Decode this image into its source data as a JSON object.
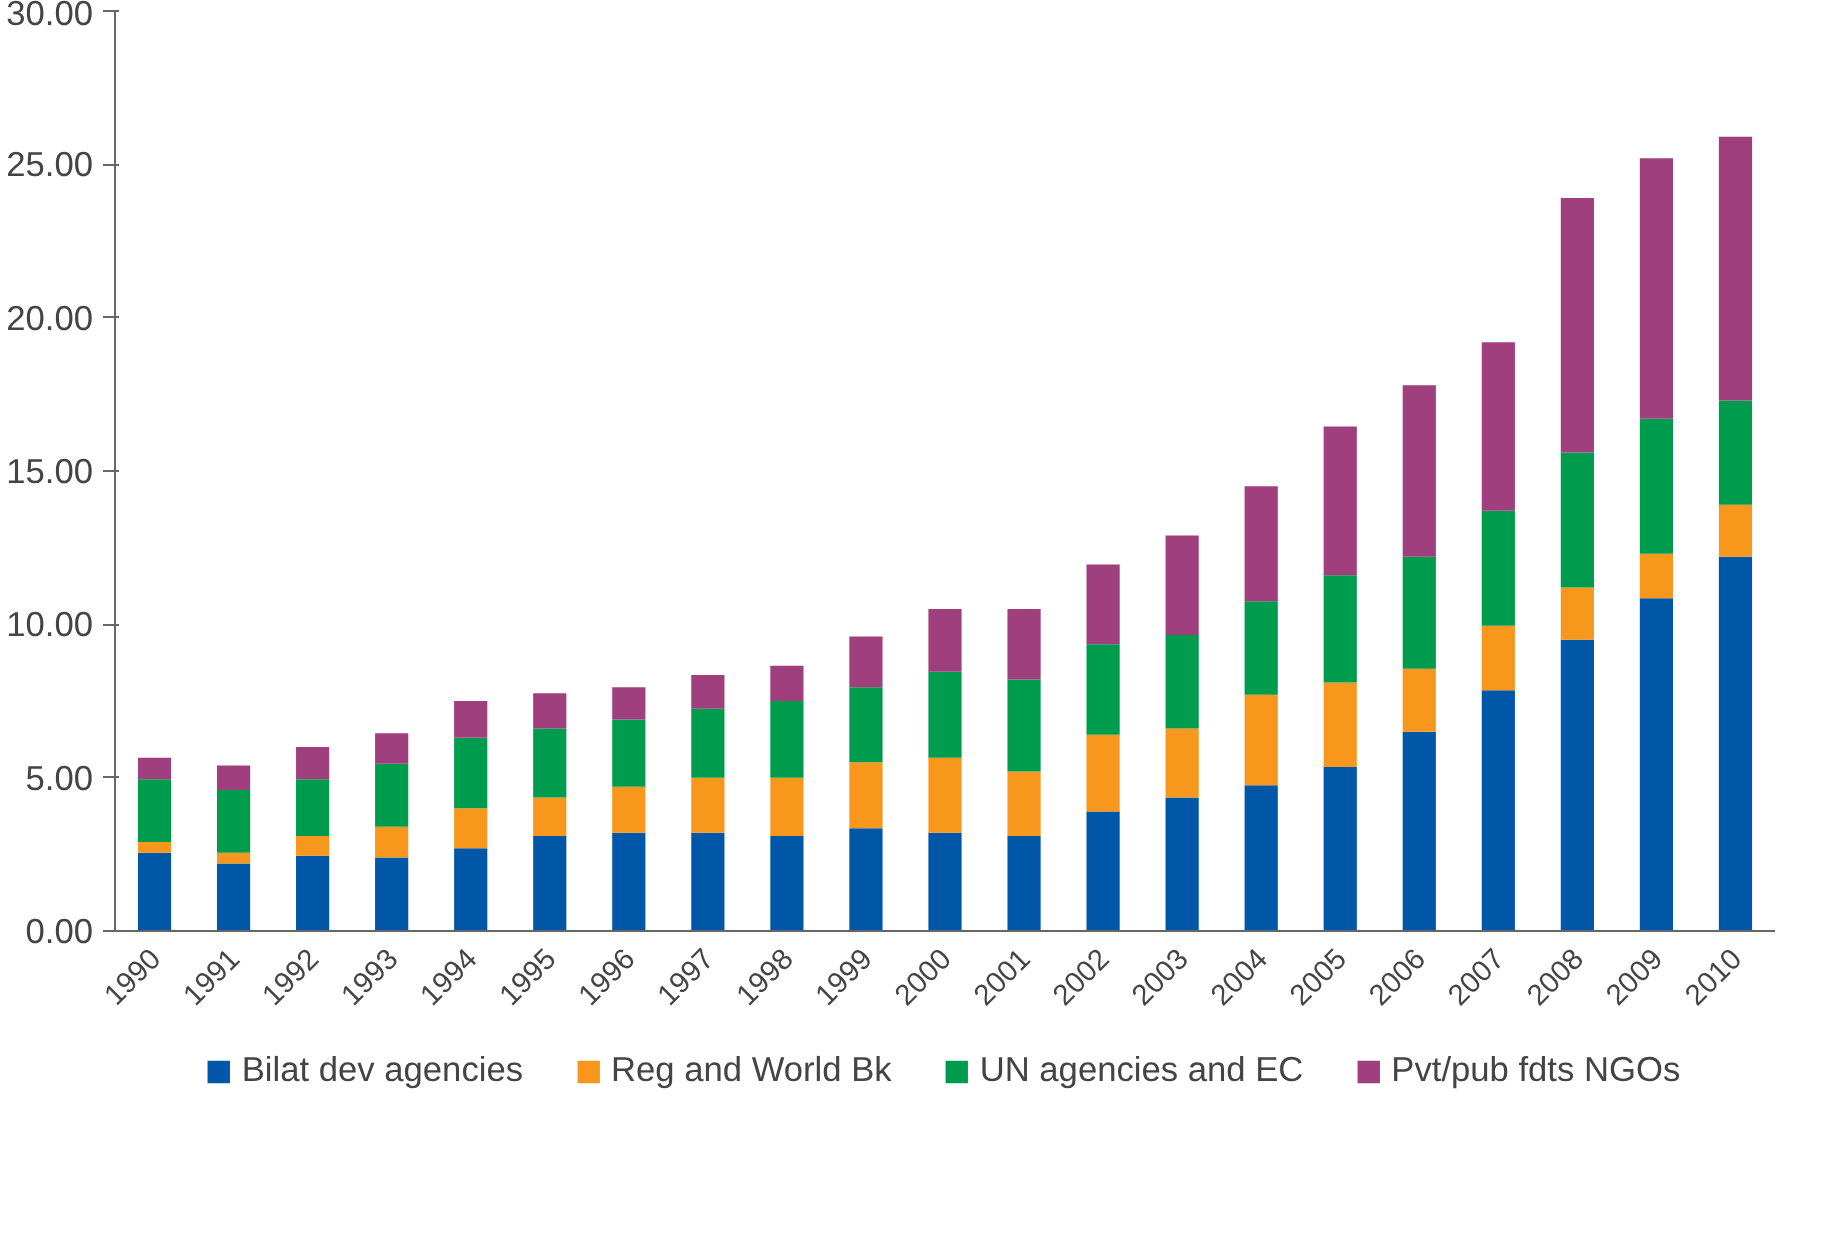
{
  "chart_data": {
    "type": "bar",
    "stacked": true,
    "categories": [
      "1990",
      "1991",
      "1992",
      "1993",
      "1994",
      "1995",
      "1996",
      "1997",
      "1998",
      "1999",
      "2000",
      "2001",
      "2002",
      "2003",
      "2004",
      "2005",
      "2006",
      "2007",
      "2008",
      "2009",
      "2010"
    ],
    "series": [
      {
        "name": "Bilat dev agencies",
        "color": "#0057a8",
        "values": [
          2.55,
          2.2,
          2.45,
          2.4,
          2.7,
          3.1,
          3.2,
          3.2,
          3.1,
          3.35,
          3.2,
          3.1,
          3.9,
          4.35,
          4.75,
          5.35,
          6.5,
          7.85,
          9.5,
          10.85,
          12.2
        ]
      },
      {
        "name": "Reg and World Bk",
        "color": "#f7981d",
        "values": [
          0.35,
          0.35,
          0.65,
          1.0,
          1.3,
          1.25,
          1.5,
          1.8,
          1.9,
          2.15,
          2.45,
          2.1,
          2.5,
          2.25,
          2.95,
          2.75,
          2.05,
          2.1,
          1.7,
          1.45,
          1.7
        ]
      },
      {
        "name": "UN agencies and EC",
        "color": "#009c4d",
        "values": [
          2.05,
          2.05,
          1.85,
          2.05,
          2.3,
          2.25,
          2.2,
          2.25,
          2.5,
          2.45,
          2.8,
          3.0,
          2.95,
          3.05,
          3.05,
          3.5,
          3.65,
          3.75,
          4.4,
          4.4,
          3.4
        ]
      },
      {
        "name": "Pvt/pub fdts NGOs",
        "color": "#a03f7d",
        "values": [
          0.7,
          0.8,
          1.05,
          1.0,
          1.2,
          1.15,
          1.05,
          1.1,
          1.15,
          1.65,
          2.05,
          2.3,
          2.6,
          3.25,
          3.75,
          4.85,
          5.6,
          5.5,
          8.3,
          8.5,
          8.6
        ]
      }
    ],
    "ylim": [
      0,
      30
    ],
    "yticks": [
      {
        "value": 0,
        "label": "0.00"
      },
      {
        "value": 5,
        "label": "5.00"
      },
      {
        "value": 10,
        "label": "10.00"
      },
      {
        "value": 15,
        "label": "15.00"
      },
      {
        "value": 20,
        "label": "20.00"
      },
      {
        "value": 25,
        "label": "25.00"
      },
      {
        "value": 30,
        "label": "30.00"
      }
    ],
    "grid": false,
    "legend": "bottom"
  }
}
